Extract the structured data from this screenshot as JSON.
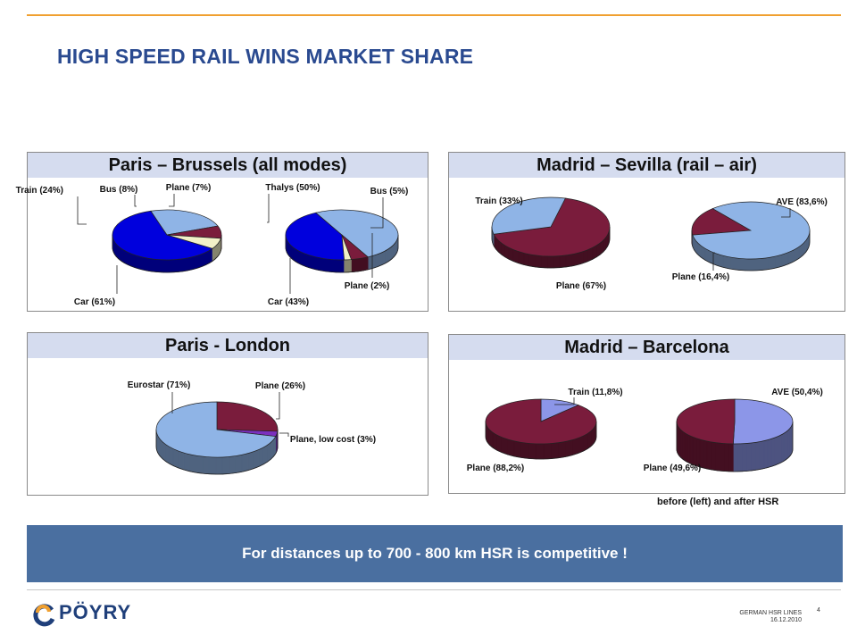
{
  "slide": {
    "title": "HIGH SPEED RAIL WINS MARKET SHARE",
    "note": "before (left) and after HSR",
    "conclusion": "For distances up to 700 - 800 km HSR is competitive !",
    "logo_text": "PÖYRY",
    "footer_line1": "GERMAN HSR LINES",
    "footer_line2": "16.12.2010",
    "page_number": "4"
  },
  "colors": {
    "accent_line": "#f0a030",
    "title": "#2a4a90",
    "panel_header": "#d5dcef",
    "banner": "#4a6fa0",
    "car": "#0000dd",
    "train": "#8fb4e6",
    "bus": "#7a1c3c",
    "plane": "#7a1c3c",
    "plane_light": "#f2f0c8",
    "plane_lowcost": "#7b2fbf",
    "ave_after": "#8c96e8"
  },
  "chart_data": [
    {
      "type": "pie",
      "panel": "Paris – Brussels (all modes)",
      "title": "Paris – Brussels (all modes)",
      "charts": [
        {
          "slices": [
            {
              "label": "Car (61%)",
              "value": 61,
              "color": "#0000dd"
            },
            {
              "label": "Train (24%)",
              "value": 24,
              "color": "#8fb4e6"
            },
            {
              "label": "Bus (8%)",
              "value": 8,
              "color": "#7a1c3c"
            },
            {
              "label": "Plane  (7%)",
              "value": 7,
              "color": "#f2f0c8"
            }
          ]
        },
        {
          "slices": [
            {
              "label": "Thalys (50%)",
              "value": 50,
              "color": "#8fb4e6"
            },
            {
              "label": "Bus (5%)",
              "value": 5,
              "color": "#7a1c3c"
            },
            {
              "label": "Plane (2%)",
              "value": 2,
              "color": "#f2f0c8"
            },
            {
              "label": "Car (43%)",
              "value": 43,
              "color": "#0000dd"
            }
          ]
        }
      ]
    },
    {
      "type": "pie",
      "panel": "Madrid – Sevilla (rail – air)",
      "title": "Madrid – Sevilla (rail – air)",
      "charts": [
        {
          "slices": [
            {
              "label": "Plane (67%)",
              "value": 67,
              "color": "#7a1c3c"
            },
            {
              "label": "Train (33%)",
              "value": 33,
              "color": "#8fb4e6"
            }
          ]
        },
        {
          "slices": [
            {
              "label": "AVE (83,6%)",
              "value": 83.6,
              "color": "#8fb4e6"
            },
            {
              "label": "Plane  (16,4%)",
              "value": 16.4,
              "color": "#7a1c3c"
            }
          ]
        }
      ]
    },
    {
      "type": "pie",
      "panel": "Paris - London",
      "title": "Paris - London",
      "charts": [
        {
          "slices": [
            {
              "label": "Plane (26%)",
              "value": 26,
              "color": "#7a1c3c"
            },
            {
              "label": "Plane, low cost (3%)",
              "value": 3,
              "color": "#7b2fbf"
            },
            {
              "label": "Eurostar (71%)",
              "value": 71,
              "color": "#8fb4e6"
            }
          ]
        }
      ]
    },
    {
      "type": "pie",
      "panel": "Madrid – Barcelona",
      "title": "Madrid – Barcelona",
      "charts": [
        {
          "slices": [
            {
              "label": "Train  (11,8%)",
              "value": 11.8,
              "color": "#8c96e8"
            },
            {
              "label": "Plane (88,2%)",
              "value": 88.2,
              "color": "#7a1c3c"
            }
          ]
        },
        {
          "slices": [
            {
              "label": "AVE (50,4%)",
              "value": 50.4,
              "color": "#8c96e8"
            },
            {
              "label": "Plane  (49,6%)",
              "value": 49.6,
              "color": "#7a1c3c"
            }
          ]
        }
      ]
    }
  ]
}
